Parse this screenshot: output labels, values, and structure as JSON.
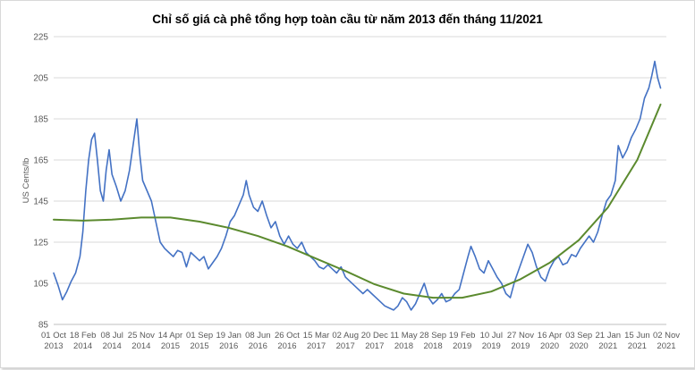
{
  "chart_data": {
    "type": "line",
    "title": "Chỉ số giá cà phê tổng hợp toàn cầu từ năm 2013 đến tháng 11/2021",
    "ylabel": "US Cents/lb",
    "xlabel": "",
    "ylim": [
      85,
      225
    ],
    "yticks": [
      85,
      105,
      125,
      145,
      165,
      185,
      205,
      225
    ],
    "grid": true,
    "x_tick_labels": [
      [
        "01 Oct",
        "2013"
      ],
      [
        "18 Feb",
        "2014"
      ],
      [
        "08 Jul",
        "2014"
      ],
      [
        "25 Nov",
        "2014"
      ],
      [
        "14 Apr",
        "2015"
      ],
      [
        "01 Sep",
        "2015"
      ],
      [
        "19 Jan",
        "2016"
      ],
      [
        "08 Jun",
        "2016"
      ],
      [
        "26 Oct",
        "2016"
      ],
      [
        "15 Mar",
        "2017"
      ],
      [
        "02 Aug",
        "2017"
      ],
      [
        "20 Dec",
        "2017"
      ],
      [
        "11 May",
        "2018"
      ],
      [
        "28 Sep",
        "2018"
      ],
      [
        "19 Feb",
        "2019"
      ],
      [
        "10 Jul",
        "2019"
      ],
      [
        "27 Nov",
        "2019"
      ],
      [
        "16 Apr",
        "2020"
      ],
      [
        "03 Sep",
        "2020"
      ],
      [
        "21 Jan",
        "2021"
      ],
      [
        "15 Jun",
        "2021"
      ],
      [
        "02 Nov",
        "2021"
      ]
    ],
    "series": [
      {
        "name": "",
        "color": "#4472c4",
        "points": [
          [
            0,
            110
          ],
          [
            0.3,
            104
          ],
          [
            0.6,
            97
          ],
          [
            0.9,
            101
          ],
          [
            1.2,
            106
          ],
          [
            1.5,
            110
          ],
          [
            1.8,
            118
          ],
          [
            2.0,
            130
          ],
          [
            2.2,
            150
          ],
          [
            2.4,
            165
          ],
          [
            2.6,
            175
          ],
          [
            2.8,
            178
          ],
          [
            3.0,
            165
          ],
          [
            3.2,
            150
          ],
          [
            3.4,
            145
          ],
          [
            3.6,
            160
          ],
          [
            3.8,
            170
          ],
          [
            4.0,
            158
          ],
          [
            4.3,
            152
          ],
          [
            4.6,
            145
          ],
          [
            4.9,
            150
          ],
          [
            5.2,
            160
          ],
          [
            5.5,
            175
          ],
          [
            5.7,
            185
          ],
          [
            5.9,
            168
          ],
          [
            6.1,
            155
          ],
          [
            6.4,
            150
          ],
          [
            6.7,
            145
          ],
          [
            7.0,
            135
          ],
          [
            7.3,
            125
          ],
          [
            7.6,
            122
          ],
          [
            7.9,
            120
          ],
          [
            8.2,
            118
          ],
          [
            8.5,
            121
          ],
          [
            8.8,
            120
          ],
          [
            9.1,
            113
          ],
          [
            9.4,
            120
          ],
          [
            9.7,
            118
          ],
          [
            10.0,
            116
          ],
          [
            10.3,
            118
          ],
          [
            10.6,
            112
          ],
          [
            10.9,
            115
          ],
          [
            11.2,
            118
          ],
          [
            11.5,
            122
          ],
          [
            11.8,
            128
          ],
          [
            12.1,
            135
          ],
          [
            12.4,
            138
          ],
          [
            12.7,
            143
          ],
          [
            13.0,
            148
          ],
          [
            13.2,
            155
          ],
          [
            13.4,
            148
          ],
          [
            13.7,
            142
          ],
          [
            14.0,
            140
          ],
          [
            14.3,
            145
          ],
          [
            14.6,
            138
          ],
          [
            14.9,
            132
          ],
          [
            15.2,
            135
          ],
          [
            15.5,
            128
          ],
          [
            15.8,
            124
          ],
          [
            16.1,
            128
          ],
          [
            16.4,
            124
          ],
          [
            16.7,
            122
          ],
          [
            17.0,
            125
          ],
          [
            17.3,
            120
          ],
          [
            17.6,
            118
          ],
          [
            17.9,
            116
          ],
          [
            18.2,
            113
          ],
          [
            18.5,
            112
          ],
          [
            18.8,
            114
          ],
          [
            19.1,
            112
          ],
          [
            19.4,
            110
          ],
          [
            19.7,
            113
          ],
          [
            20.0,
            108
          ],
          [
            20.3,
            106
          ],
          [
            20.6,
            104
          ],
          [
            20.9,
            102
          ],
          [
            21.2,
            100
          ],
          [
            21.5,
            102
          ],
          [
            21.8,
            100
          ],
          [
            22.1,
            98
          ],
          [
            22.4,
            96
          ],
          [
            22.7,
            94
          ],
          [
            23.0,
            93
          ],
          [
            23.3,
            92
          ],
          [
            23.6,
            94
          ],
          [
            23.9,
            98
          ],
          [
            24.2,
            96
          ],
          [
            24.5,
            92
          ],
          [
            24.8,
            95
          ],
          [
            25.1,
            100
          ],
          [
            25.4,
            105
          ],
          [
            25.7,
            98
          ],
          [
            26.0,
            95
          ],
          [
            26.3,
            97
          ],
          [
            26.6,
            100
          ],
          [
            26.9,
            96
          ],
          [
            27.2,
            97
          ],
          [
            27.5,
            100
          ],
          [
            27.8,
            102
          ],
          [
            28.1,
            110
          ],
          [
            28.4,
            118
          ],
          [
            28.6,
            123
          ],
          [
            28.9,
            118
          ],
          [
            29.2,
            112
          ],
          [
            29.5,
            110
          ],
          [
            29.8,
            116
          ],
          [
            30.1,
            112
          ],
          [
            30.4,
            108
          ],
          [
            30.7,
            105
          ],
          [
            31.0,
            100
          ],
          [
            31.3,
            98
          ],
          [
            31.6,
            106
          ],
          [
            31.9,
            112
          ],
          [
            32.2,
            118
          ],
          [
            32.5,
            124
          ],
          [
            32.8,
            120
          ],
          [
            33.1,
            113
          ],
          [
            33.4,
            108
          ],
          [
            33.7,
            106
          ],
          [
            34.0,
            112
          ],
          [
            34.3,
            116
          ],
          [
            34.6,
            118
          ],
          [
            34.9,
            114
          ],
          [
            35.2,
            115
          ],
          [
            35.5,
            119
          ],
          [
            35.8,
            118
          ],
          [
            36.1,
            122
          ],
          [
            36.4,
            125
          ],
          [
            36.7,
            128
          ],
          [
            37.0,
            125
          ],
          [
            37.3,
            130
          ],
          [
            37.6,
            138
          ],
          [
            37.9,
            145
          ],
          [
            38.2,
            148
          ],
          [
            38.5,
            155
          ],
          [
            38.7,
            172
          ],
          [
            39.0,
            166
          ],
          [
            39.3,
            170
          ],
          [
            39.6,
            176
          ],
          [
            39.9,
            180
          ],
          [
            40.2,
            185
          ],
          [
            40.5,
            195
          ],
          [
            40.8,
            200
          ],
          [
            41.0,
            206
          ],
          [
            41.2,
            213
          ],
          [
            41.4,
            205
          ],
          [
            41.6,
            200
          ]
        ]
      },
      {
        "name": "",
        "color": "#5b8a2e",
        "points": [
          [
            0,
            136
          ],
          [
            2,
            135.5
          ],
          [
            4,
            136
          ],
          [
            6,
            137
          ],
          [
            8,
            137
          ],
          [
            10,
            135
          ],
          [
            12,
            132
          ],
          [
            14,
            128
          ],
          [
            16,
            123
          ],
          [
            18,
            117
          ],
          [
            20,
            111
          ],
          [
            22,
            104.5
          ],
          [
            24,
            100
          ],
          [
            26,
            98
          ],
          [
            28,
            98
          ],
          [
            30,
            101
          ],
          [
            32,
            107
          ],
          [
            34,
            115
          ],
          [
            36,
            126
          ],
          [
            38,
            142
          ],
          [
            40,
            165
          ],
          [
            41.6,
            192
          ]
        ]
      }
    ]
  }
}
